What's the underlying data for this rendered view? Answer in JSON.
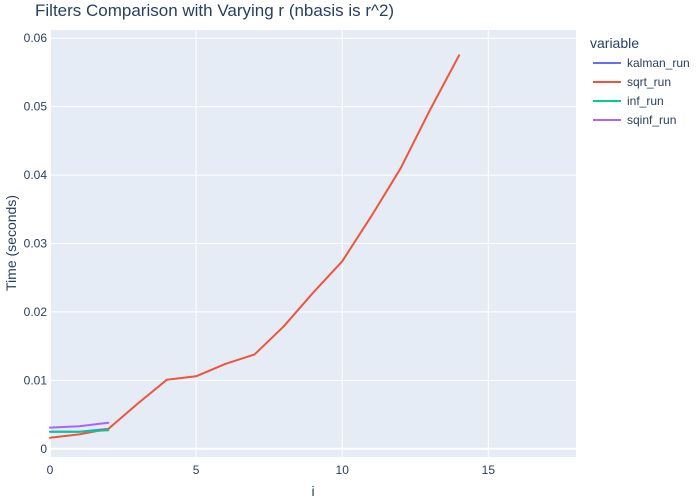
{
  "chart_data": {
    "type": "line",
    "title": "Filters Comparison with Varying r (nbasis is r^2)",
    "xlabel": "i",
    "ylabel": "Time (seconds)",
    "xlim": [
      0,
      18
    ],
    "ylim": [
      -0.0012,
      0.0612
    ],
    "x_ticks": [
      0,
      5,
      10,
      15
    ],
    "y_ticks": [
      0,
      0.01,
      0.02,
      0.03,
      0.04,
      0.05,
      0.06
    ],
    "x_tick_labels": [
      "0",
      "5",
      "10",
      "15"
    ],
    "y_tick_labels": [
      "0",
      "0.01",
      "0.02",
      "0.03",
      "0.04",
      "0.05",
      "0.06"
    ],
    "grid": true,
    "plot_bgcolor": "#e5ecf6",
    "legend": {
      "title": "variable",
      "placement": "right"
    },
    "series": [
      {
        "name": "kalman_run",
        "color": "#636efa",
        "x": [
          0,
          1,
          2
        ],
        "y": [
          0.0025,
          0.0025,
          0.0029
        ]
      },
      {
        "name": "sqrt_run",
        "color": "#ef553b",
        "x": [
          0,
          1,
          2,
          3,
          4,
          5,
          6,
          7,
          8,
          9,
          10,
          11,
          12,
          13,
          14
        ],
        "y": [
          0.0016,
          0.0021,
          0.0029,
          0.0066,
          0.0101,
          0.0106,
          0.0124,
          0.0138,
          0.0179,
          0.0228,
          0.0274,
          0.034,
          0.041,
          0.0495,
          0.0575
        ]
      },
      {
        "name": "inf_run",
        "color": "#00cc96",
        "x": [
          0,
          1,
          2
        ],
        "y": [
          0.0025,
          0.0025,
          0.0027
        ]
      },
      {
        "name": "sqinf_run",
        "color": "#ab63fa",
        "x": [
          0,
          1,
          2
        ],
        "y": [
          0.0031,
          0.0033,
          0.0038
        ]
      }
    ]
  }
}
